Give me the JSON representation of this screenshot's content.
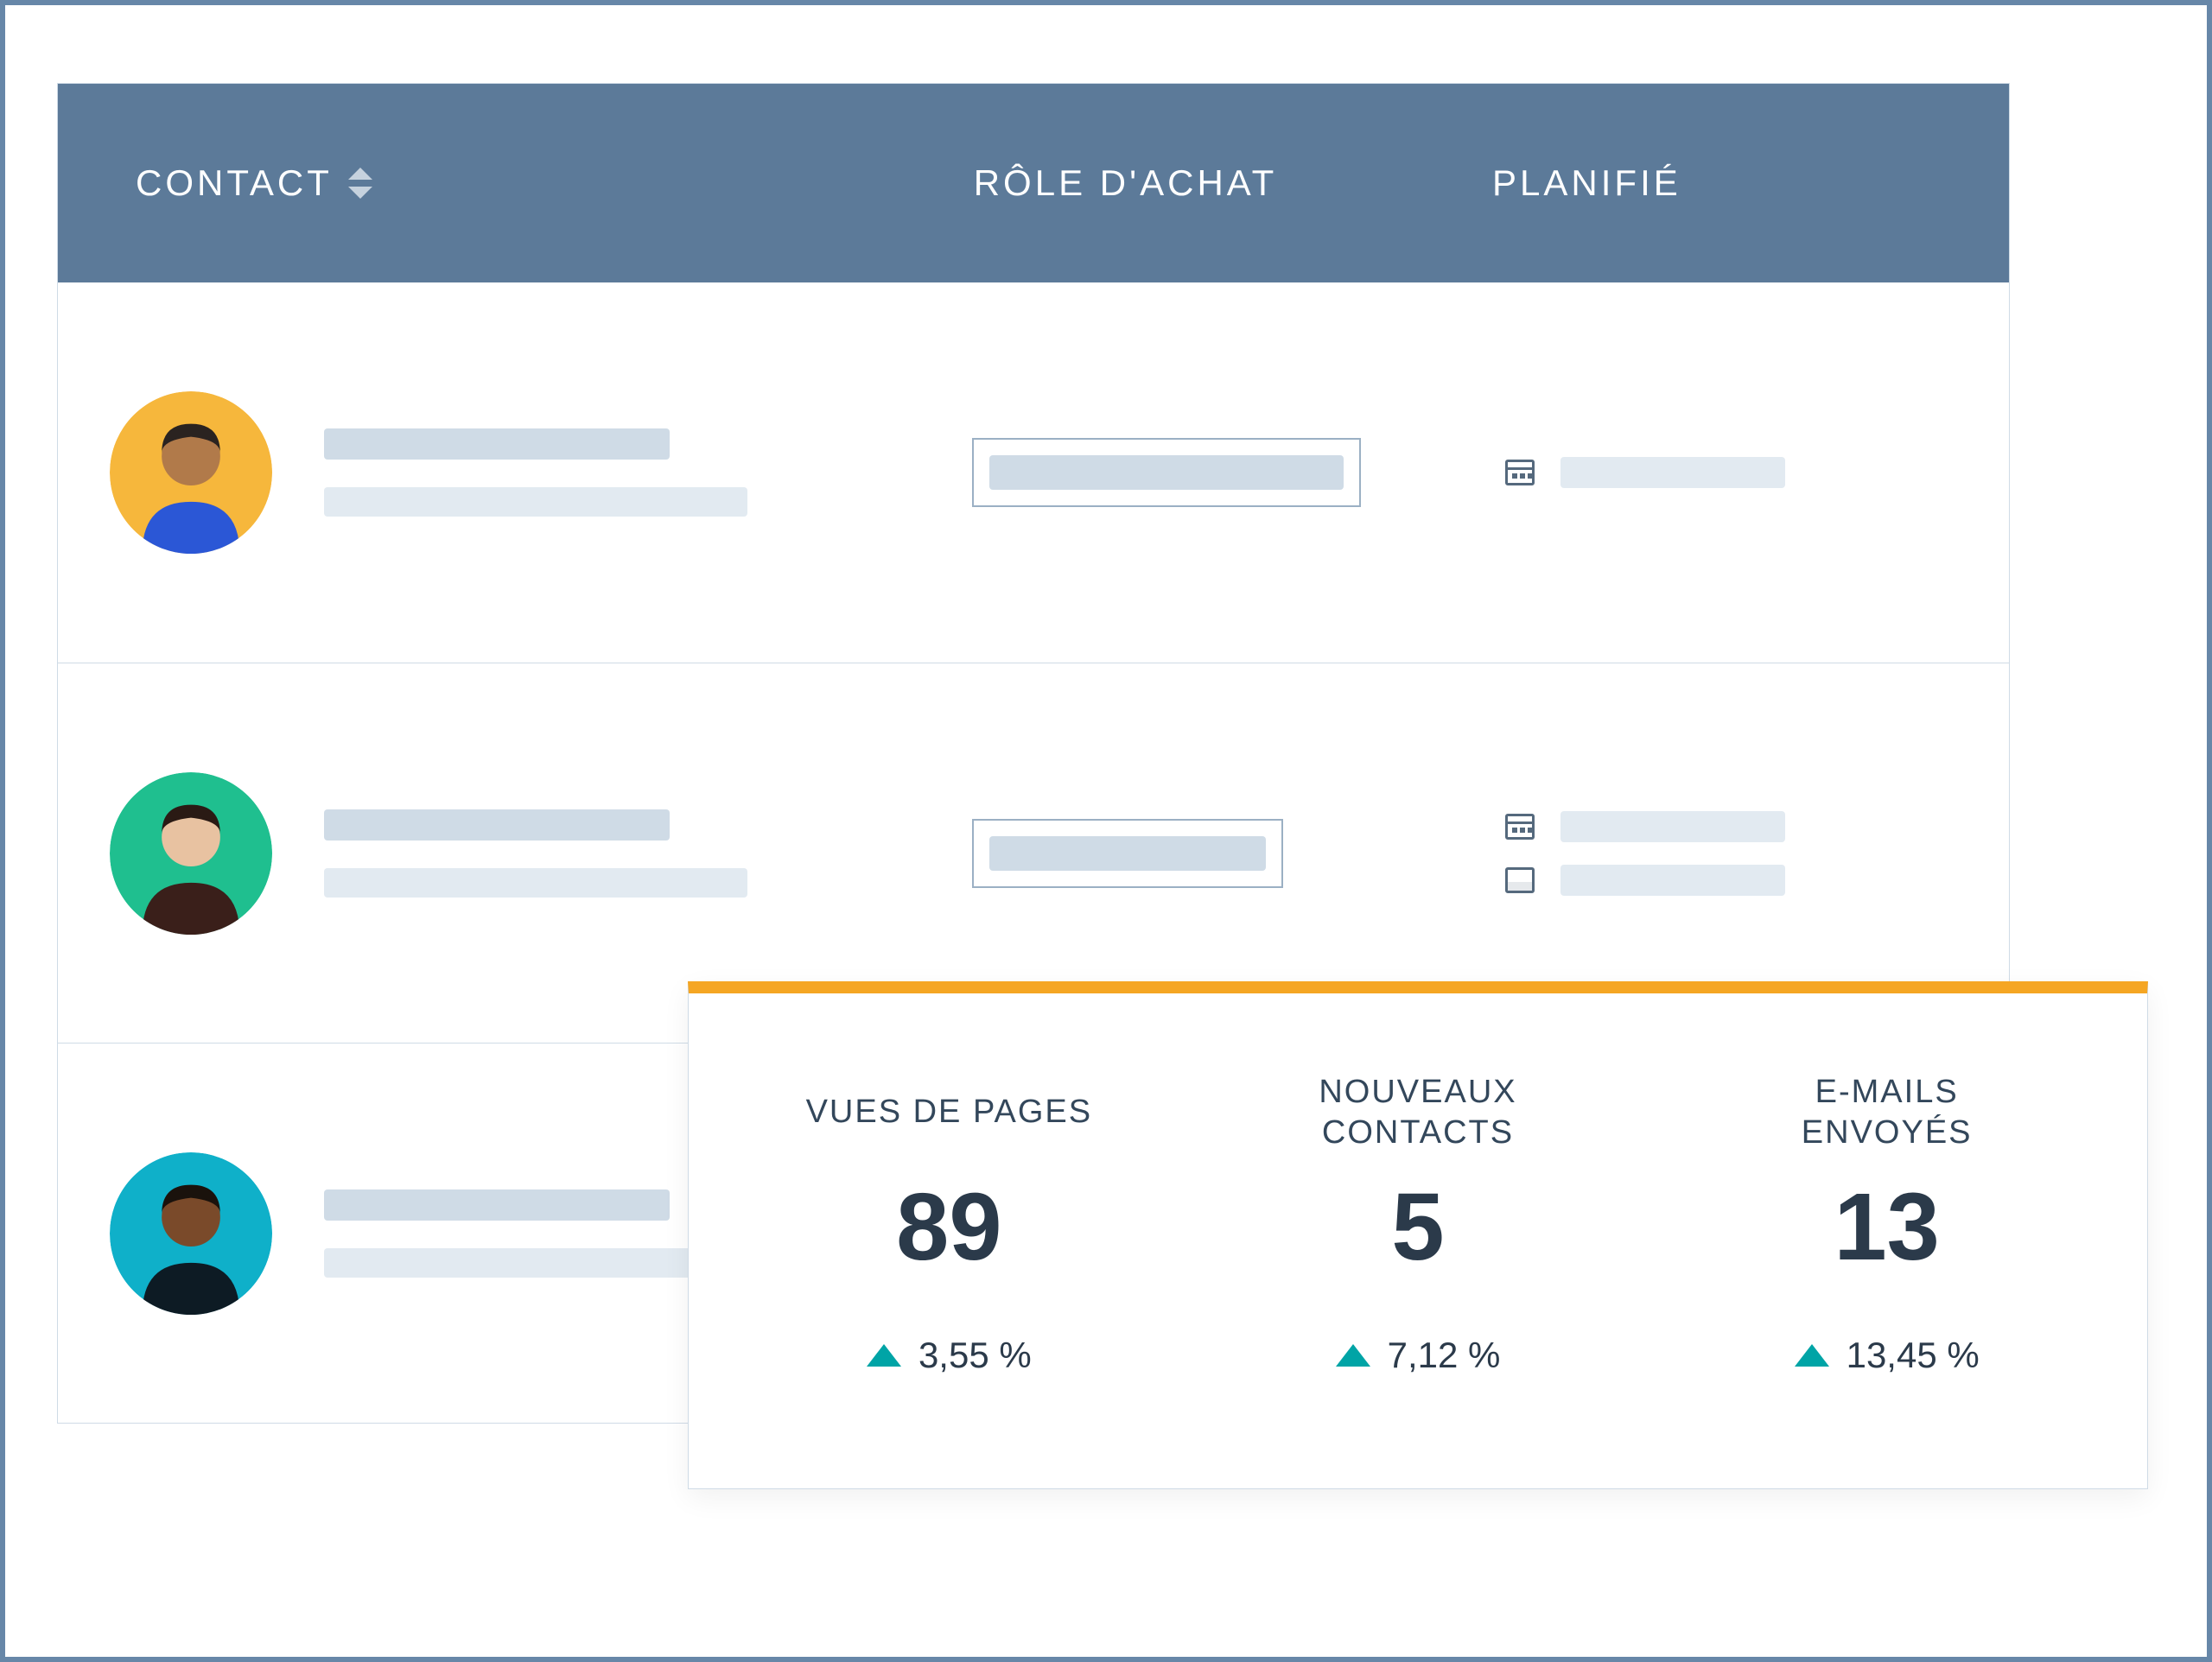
{
  "colors": {
    "page_border": "#6787a8",
    "header_bg": "#5c7a99",
    "header_text": "#ffffff",
    "row_border": "#cfdbe6",
    "skeleton_dark": "#cfdbe6",
    "skeleton_light": "#e2eaf1",
    "card_accent": "#f5a623",
    "delta_up": "#00a4a6",
    "text_primary": "#2b3a4a",
    "text_label": "#33475b",
    "icon_stroke": "#55697d"
  },
  "table": {
    "columns": {
      "contact": "CONTACT",
      "role": "RÔLE D'ACHAT",
      "planned": "PLANIFIÉ"
    },
    "rows": [
      {
        "avatar": {
          "bg": "#f6b73c",
          "shirt": "#2b57d6",
          "skin": "#b17a4a",
          "hair": "#2a2320"
        },
        "role_box_width": 450,
        "planned": [
          {
            "icon": "calendar"
          }
        ]
      },
      {
        "avatar": {
          "bg": "#1fbf8f",
          "shirt": "#3a1f1a",
          "skin": "#e8c2a1",
          "hair": "#2a1a14"
        },
        "role_box_width": 360,
        "planned": [
          {
            "icon": "calendar"
          },
          {
            "icon": "card"
          }
        ]
      },
      {
        "avatar": {
          "bg": "#0fb0c9",
          "shirt": "#0d1b24",
          "skin": "#7a4a2a",
          "hair": "#1a120c"
        },
        "role_box_width": 450,
        "planned": [
          {
            "icon": "calendar"
          }
        ]
      }
    ]
  },
  "stats": {
    "items": [
      {
        "label": "VUES DE PAGES",
        "value": "89",
        "delta": "3,55 %",
        "dir": "up"
      },
      {
        "label": "NOUVEAUX\nCONTACTS",
        "value": "5",
        "delta": "7,12 %",
        "dir": "up"
      },
      {
        "label": "E-MAILS\nENVOYÉS",
        "value": "13",
        "delta": "13,45 %",
        "dir": "up"
      }
    ]
  }
}
